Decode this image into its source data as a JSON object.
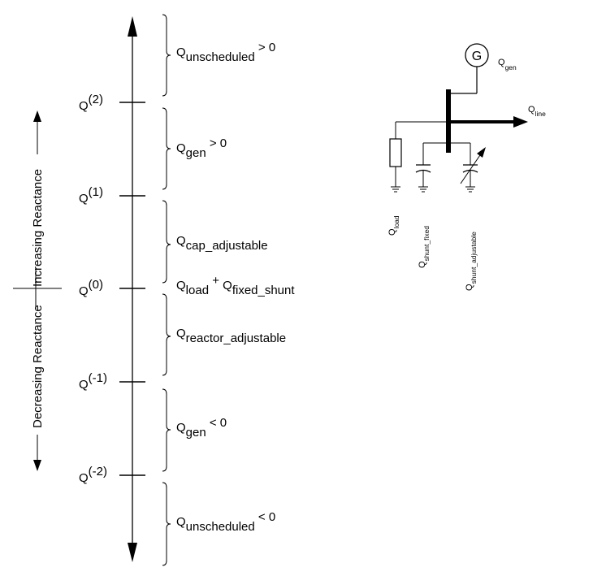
{
  "axis": {
    "side_label_up": "Increasing Reactance",
    "side_label_down": "Decreasing Reactance",
    "levels": [
      {
        "base": "Q",
        "sup": "(2)"
      },
      {
        "base": "Q",
        "sup": "(1)"
      },
      {
        "base": "Q",
        "sup": "(0)"
      },
      {
        "base": "Q",
        "sup": "(-1)"
      },
      {
        "base": "Q",
        "sup": "(-2)"
      }
    ],
    "regions": [
      {
        "base": "Q",
        "sub": "unscheduled",
        "rel": " > 0"
      },
      {
        "base": "Q",
        "sub": "gen",
        "rel": " > 0"
      },
      {
        "base": "Q",
        "sub": "cap_adjustable"
      },
      {
        "base": "Q",
        "sub": "reactor_adjustable"
      },
      {
        "base": "Q",
        "sub": "gen",
        "rel": " < 0"
      },
      {
        "base": "Q",
        "sub": "unscheduled",
        "rel": " < 0"
      }
    ],
    "center_label": {
      "base1": "Q",
      "sub1": "load",
      "plus": " + ",
      "base2": "Q",
      "sub2": "fixed_shunt"
    }
  },
  "circuit": {
    "generator_symbol": "G",
    "gen_label": {
      "base": "Q",
      "sub": "gen"
    },
    "line_label": {
      "base": "Q",
      "sub": "line"
    },
    "load_label": {
      "base": "Q",
      "sub": "load"
    },
    "shunt_fixed_label": {
      "base": "Q",
      "sub": "shunt_fixed"
    },
    "shunt_adjustable_label": {
      "base": "Q",
      "sub": "shunt_adjustable"
    }
  }
}
